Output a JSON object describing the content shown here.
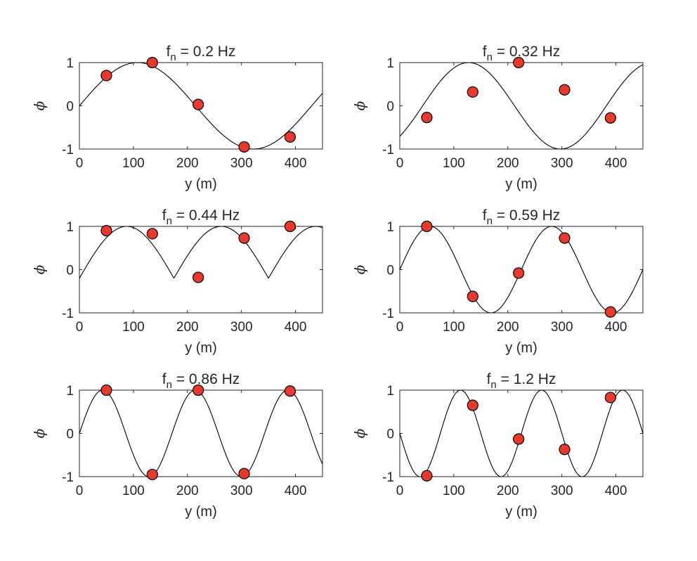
{
  "chart_data": [
    {
      "type": "line",
      "title_prefix": "f",
      "title_sub": "n",
      "title_value": " =  0.2  Hz",
      "xlabel": "y (m)",
      "ylabel": "ϕ",
      "xlim": [
        0,
        450
      ],
      "ylim": [
        -1,
        1
      ],
      "xticks": [
        0,
        100,
        200,
        300,
        400
      ],
      "yticks": [
        -1,
        0,
        1
      ],
      "xtick_labels": [
        "0",
        "100",
        "200",
        "300",
        "400"
      ],
      "ytick_labels": [
        "-1",
        "0",
        "1"
      ],
      "grid": false,
      "mode_shape": {
        "amplitude": 1,
        "wavelength": 430,
        "phase": 0
      },
      "points": [
        {
          "x": 50,
          "y": 0.7
        },
        {
          "x": 135,
          "y": 1.0
        },
        {
          "x": 220,
          "y": 0.03
        },
        {
          "x": 305,
          "y": -0.95
        },
        {
          "x": 390,
          "y": -0.72
        }
      ]
    },
    {
      "type": "line",
      "title_prefix": "f",
      "title_sub": "n",
      "title_value": " =  0.32  Hz",
      "xlabel": "y (m)",
      "ylabel": "ϕ",
      "xlim": [
        0,
        450
      ],
      "ylim": [
        -1,
        1
      ],
      "xticks": [
        0,
        100,
        200,
        300,
        400
      ],
      "yticks": [
        -1,
        0,
        1
      ],
      "xtick_labels": [
        "0",
        "100",
        "200",
        "300",
        "400"
      ],
      "ytick_labels": [
        "-1",
        "0",
        "1"
      ],
      "grid": false,
      "mode_shape": {
        "amplitude": 1,
        "wavelength": 340,
        "phase": 5.5
      },
      "points": [
        {
          "x": 50,
          "y": -0.27
        },
        {
          "x": 135,
          "y": 0.32
        },
        {
          "x": 220,
          "y": 1.0
        },
        {
          "x": 305,
          "y": 0.37
        },
        {
          "x": 390,
          "y": -0.28
        }
      ]
    },
    {
      "type": "line",
      "title_prefix": "f",
      "title_sub": "n",
      "title_value": " =  0.44  Hz",
      "xlabel": "y (m)",
      "ylabel": "ϕ",
      "xlim": [
        0,
        450
      ],
      "ylim": [
        -1,
        1
      ],
      "xticks": [
        0,
        100,
        200,
        300,
        400
      ],
      "yticks": [
        -1,
        0,
        1
      ],
      "xtick_labels": [
        "0",
        "100",
        "200",
        "300",
        "400"
      ],
      "ytick_labels": [
        "-1",
        "0",
        "1"
      ],
      "grid": false,
      "mode_shape": {
        "amplitude": 1,
        "wavelength": 350,
        "phase": 0,
        "abs_envelope": true
      },
      "points": [
        {
          "x": 50,
          "y": 0.9
        },
        {
          "x": 135,
          "y": 0.83
        },
        {
          "x": 220,
          "y": -0.18
        },
        {
          "x": 305,
          "y": 0.73
        },
        {
          "x": 390,
          "y": 1.0
        }
      ]
    },
    {
      "type": "line",
      "title_prefix": "f",
      "title_sub": "n",
      "title_value": " =  0.59  Hz",
      "xlabel": "y (m)",
      "ylabel": "ϕ",
      "xlim": [
        0,
        450
      ],
      "ylim": [
        -1,
        1
      ],
      "xticks": [
        0,
        100,
        200,
        300,
        400
      ],
      "yticks": [
        -1,
        0,
        1
      ],
      "xtick_labels": [
        "0",
        "100",
        "200",
        "300",
        "400"
      ],
      "ytick_labels": [
        "-1",
        "0",
        "1"
      ],
      "grid": false,
      "mode_shape": {
        "amplitude": 1,
        "wavelength": 225,
        "phase": 0
      },
      "points": [
        {
          "x": 50,
          "y": 1.0
        },
        {
          "x": 135,
          "y": -0.62
        },
        {
          "x": 220,
          "y": -0.08
        },
        {
          "x": 305,
          "y": 0.73
        },
        {
          "x": 390,
          "y": -0.98
        }
      ]
    },
    {
      "type": "line",
      "title_prefix": "f",
      "title_sub": "n",
      "title_value": " =  0.86  Hz",
      "xlabel": "y (m)",
      "ylabel": "ϕ",
      "xlim": [
        0,
        450
      ],
      "ylim": [
        -1,
        1
      ],
      "xticks": [
        0,
        100,
        200,
        300,
        400
      ],
      "yticks": [
        -1,
        0,
        1
      ],
      "xtick_labels": [
        "0",
        "100",
        "200",
        "300",
        "400"
      ],
      "ytick_labels": [
        "-1",
        "0",
        "1"
      ],
      "grid": false,
      "mode_shape": {
        "amplitude": 1,
        "wavelength": 171.4,
        "phase": 0
      },
      "points": [
        {
          "x": 50,
          "y": 1.0
        },
        {
          "x": 135,
          "y": -0.95
        },
        {
          "x": 220,
          "y": 1.0
        },
        {
          "x": 305,
          "y": -0.93
        },
        {
          "x": 390,
          "y": 0.98
        }
      ]
    },
    {
      "type": "line",
      "title_prefix": "f",
      "title_sub": "n",
      "title_value": " =  1.2  Hz",
      "xlabel": "y (m)",
      "ylabel": "ϕ",
      "xlim": [
        0,
        450
      ],
      "ylim": [
        -1,
        1
      ],
      "xticks": [
        0,
        100,
        200,
        300,
        400
      ],
      "yticks": [
        -1,
        0,
        1
      ],
      "xtick_labels": [
        "0",
        "100",
        "200",
        "300",
        "400"
      ],
      "ytick_labels": [
        "-1",
        "0",
        "1"
      ],
      "grid": false,
      "mode_shape": {
        "amplitude": 1,
        "wavelength": 150,
        "phase": 3.1416
      },
      "points": [
        {
          "x": 50,
          "y": -0.98
        },
        {
          "x": 135,
          "y": 0.65
        },
        {
          "x": 220,
          "y": -0.13
        },
        {
          "x": 305,
          "y": -0.37
        },
        {
          "x": 390,
          "y": 0.83
        }
      ]
    }
  ],
  "style": {
    "marker_fill": "#e8392c",
    "marker_edge": "#000000",
    "line_color": "#000000",
    "axis_color": "#262626",
    "background": "#ffffff"
  }
}
